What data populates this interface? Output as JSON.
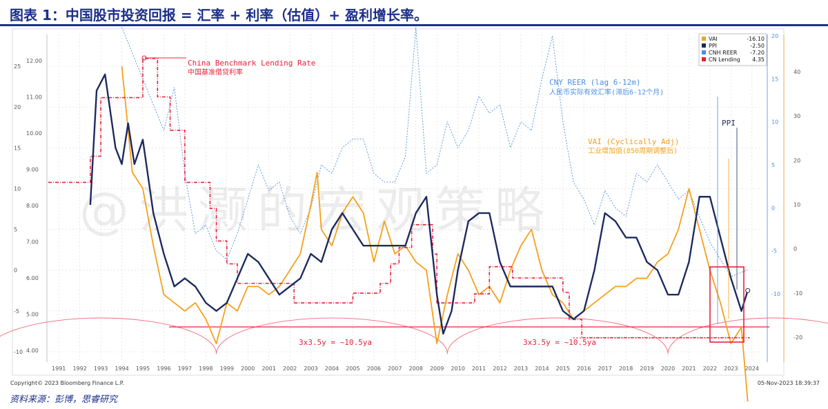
{
  "title": "图表 1：中国股市投资回报 = 汇率 + 利率（估值）+ 盈利增长率。",
  "source": "资料来源：彭博，思睿研究",
  "copyright": "Copyright© 2023 Bloomberg Finance L.P.",
  "timestamp": "05-Nov-2023 18:39:37",
  "watermark": "@洪灏的宏观策略",
  "colors": {
    "vai": "#f5a01a",
    "ppi": "#1c2a5e",
    "reer": "#4a90e2",
    "lending": "#e8203a",
    "title": "#1b2f8a"
  },
  "annotations": {
    "lending_en": "China Benchmark Lending Rate",
    "lending_cn": "中国基准借贷利率",
    "reer_en": "CNY REER (lag 6-12m)",
    "reer_cn": "人民币实际有效汇率(滞后6-12个月)",
    "vai_en": "VAI (Cyclically Adj)",
    "vai_cn": "工业增加值(850周期调整后)",
    "ppi": "PPI",
    "cycle_1": "3x3.5y = ~10.5ya",
    "cycle_2": "3x3.5y = ~10.5ya"
  },
  "legend": [
    {
      "name": "VAI",
      "value": "-16.10",
      "color": "#f5a01a"
    },
    {
      "name": "PPI",
      "value": "-2.50",
      "color": "#1c2a5e"
    },
    {
      "name": "CNH REER",
      "value": "-7.20",
      "color": "#4a90e2"
    },
    {
      "name": "CN Lending",
      "value": "4.35",
      "color": "#e8203a"
    }
  ],
  "chart_data": {
    "type": "line",
    "x_ticks": [
      "1991",
      "1992",
      "1993",
      "1994",
      "1995",
      "1996",
      "1997",
      "1998",
      "1999",
      "2000",
      "2001",
      "2002",
      "2003",
      "2004",
      "2005",
      "2006",
      "2007",
      "2008",
      "2009",
      "2010",
      "2011",
      "2012",
      "2013",
      "2014",
      "2015",
      "2016",
      "2017",
      "2018",
      "2019",
      "2020",
      "2021",
      "2022",
      "2023",
      "2024"
    ],
    "left_inner_ticks": [
      "12.00",
      "11.00",
      "10.00",
      "9.00",
      "8.00",
      "7.00",
      "6.00",
      "5.00",
      "4.00"
    ],
    "left_outer_ticks": [
      "25",
      "20",
      "15",
      "10",
      "5",
      "0",
      "-5",
      "-10"
    ],
    "right_inner_ticks": [
      "20",
      "15",
      "10",
      "5",
      "0",
      "-5",
      "-10"
    ],
    "right_outer_ticks": [
      "40",
      "30",
      "20",
      "10",
      "0",
      "-10",
      "-20"
    ],
    "series": [
      {
        "name": "CN Lending",
        "color": "#e8203a",
        "points": [
          [
            1990.5,
            8.64
          ],
          [
            1992.5,
            9.36
          ],
          [
            1993.0,
            10.98
          ],
          [
            1994.5,
            10.98
          ],
          [
            1995.0,
            12.06
          ],
          [
            1995.7,
            11.0
          ],
          [
            1996.3,
            10.08
          ],
          [
            1996.7,
            10.08
          ],
          [
            1997.0,
            8.64
          ],
          [
            1997.8,
            8.64
          ],
          [
            1998.2,
            7.92
          ],
          [
            1998.5,
            7.02
          ],
          [
            1999.0,
            6.39
          ],
          [
            1999.5,
            5.85
          ],
          [
            2001.8,
            5.85
          ],
          [
            2002.2,
            5.31
          ],
          [
            2004.8,
            5.31
          ],
          [
            2005.0,
            5.58
          ],
          [
            2006.3,
            5.85
          ],
          [
            2006.8,
            6.39
          ],
          [
            2007.2,
            6.84
          ],
          [
            2007.8,
            7.47
          ],
          [
            2008.3,
            7.47
          ],
          [
            2008.8,
            6.66
          ],
          [
            2009.0,
            5.31
          ],
          [
            2010.8,
            5.56
          ],
          [
            2011.5,
            6.31
          ],
          [
            2012.3,
            6.31
          ],
          [
            2012.6,
            6.0
          ],
          [
            2014.8,
            6.0
          ],
          [
            2015.0,
            5.6
          ],
          [
            2015.3,
            4.85
          ],
          [
            2015.9,
            4.35
          ],
          [
            2023.9,
            4.35
          ]
        ]
      },
      {
        "name": "PPI",
        "color": "#1c2a5e",
        "points": [
          [
            1992.5,
            8.0
          ],
          [
            1992.8,
            22.0
          ],
          [
            1993.2,
            24.0
          ],
          [
            1993.7,
            15.0
          ],
          [
            1994.0,
            13.0
          ],
          [
            1994.3,
            18.0
          ],
          [
            1994.6,
            13.0
          ],
          [
            1995.0,
            16.0
          ],
          [
            1995.5,
            7.0
          ],
          [
            1996.0,
            2.0
          ],
          [
            1996.5,
            -2.0
          ],
          [
            1997.0,
            -1.0
          ],
          [
            1997.5,
            -2.0
          ],
          [
            1998.0,
            -4.0
          ],
          [
            1998.5,
            -5.0
          ],
          [
            1999.0,
            -4.0
          ],
          [
            1999.5,
            -1.0
          ],
          [
            2000.0,
            2.0
          ],
          [
            2000.5,
            1.0
          ],
          [
            2001.0,
            -1.0
          ],
          [
            2001.5,
            -3.0
          ],
          [
            2002.0,
            -2.0
          ],
          [
            2002.5,
            -1.0
          ],
          [
            2003.0,
            2.0
          ],
          [
            2003.5,
            1.0
          ],
          [
            2004.0,
            5.0
          ],
          [
            2004.5,
            7.0
          ],
          [
            2005.0,
            5.0
          ],
          [
            2005.5,
            3.0
          ],
          [
            2006.0,
            3.0
          ],
          [
            2006.5,
            3.0
          ],
          [
            2007.0,
            3.0
          ],
          [
            2007.5,
            3.0
          ],
          [
            2008.0,
            7.0
          ],
          [
            2008.5,
            9.0
          ],
          [
            2009.0,
            -3.0
          ],
          [
            2009.3,
            -7.8
          ],
          [
            2009.7,
            -5.0
          ],
          [
            2010.0,
            0.0
          ],
          [
            2010.5,
            6.0
          ],
          [
            2011.0,
            7.0
          ],
          [
            2011.5,
            7.0
          ],
          [
            2012.0,
            1.0
          ],
          [
            2012.5,
            -2.0
          ],
          [
            2013.0,
            -2.0
          ],
          [
            2013.5,
            -2.0
          ],
          [
            2014.0,
            -2.0
          ],
          [
            2014.5,
            -2.0
          ],
          [
            2015.0,
            -5.0
          ],
          [
            2015.5,
            -6.0
          ],
          [
            2016.0,
            -5.0
          ],
          [
            2016.5,
            0.0
          ],
          [
            2017.0,
            7.0
          ],
          [
            2017.5,
            6.0
          ],
          [
            2018.0,
            4.0
          ],
          [
            2018.5,
            4.0
          ],
          [
            2019.0,
            1.0
          ],
          [
            2019.5,
            0.0
          ],
          [
            2020.0,
            -3.0
          ],
          [
            2020.5,
            -3.0
          ],
          [
            2021.0,
            1.0
          ],
          [
            2021.5,
            9.0
          ],
          [
            2022.0,
            9.0
          ],
          [
            2022.5,
            4.0
          ],
          [
            2023.0,
            -1.0
          ],
          [
            2023.5,
            -5.0
          ],
          [
            2023.8,
            -2.5
          ]
        ]
      },
      {
        "name": "VAI",
        "color": "#f5a01a",
        "points": [
          [
            1994.0,
            25.0
          ],
          [
            1994.5,
            12.0
          ],
          [
            1995.0,
            10.0
          ],
          [
            1995.5,
            3.0
          ],
          [
            1996.0,
            -3.0
          ],
          [
            1997.0,
            -5.0
          ],
          [
            1997.5,
            -4.0
          ],
          [
            1998.0,
            -6.0
          ],
          [
            1998.5,
            -9.0
          ],
          [
            1999.0,
            -4.0
          ],
          [
            1999.5,
            -5.0
          ],
          [
            2000.0,
            -2.0
          ],
          [
            2000.5,
            -2.0
          ],
          [
            2001.0,
            -3.0
          ],
          [
            2001.5,
            -2.0
          ],
          [
            2002.0,
            0.0
          ],
          [
            2002.5,
            2.0
          ],
          [
            2003.0,
            8.0
          ],
          [
            2003.3,
            12.0
          ],
          [
            2003.5,
            5.0
          ],
          [
            2004.0,
            3.0
          ],
          [
            2004.5,
            7.0
          ],
          [
            2005.0,
            9.0
          ],
          [
            2005.5,
            7.0
          ],
          [
            2006.0,
            1.0
          ],
          [
            2006.5,
            6.0
          ],
          [
            2007.0,
            2.0
          ],
          [
            2007.5,
            3.0
          ],
          [
            2008.0,
            1.0
          ],
          [
            2008.5,
            0.0
          ],
          [
            2009.0,
            -9.0
          ],
          [
            2009.5,
            -3.0
          ],
          [
            2010.0,
            2.0
          ],
          [
            2010.5,
            0.0
          ],
          [
            2011.0,
            -3.0
          ],
          [
            2011.5,
            -2.0
          ],
          [
            2012.0,
            -4.0
          ],
          [
            2012.5,
            0.0
          ],
          [
            2013.0,
            3.0
          ],
          [
            2013.5,
            5.0
          ],
          [
            2014.0,
            0.0
          ],
          [
            2014.5,
            -3.0
          ],
          [
            2015.0,
            -4.0
          ],
          [
            2015.5,
            -6.0
          ],
          [
            2016.0,
            -5.0
          ],
          [
            2016.5,
            -4.0
          ],
          [
            2017.0,
            -3.0
          ],
          [
            2017.5,
            -2.0
          ],
          [
            2018.0,
            -2.0
          ],
          [
            2018.5,
            -1.0
          ],
          [
            2019.0,
            -1.0
          ],
          [
            2019.5,
            1.0
          ],
          [
            2020.0,
            2.0
          ],
          [
            2020.5,
            5.0
          ],
          [
            2021.0,
            10.0
          ],
          [
            2021.5,
            5.0
          ],
          [
            2022.0,
            0.0
          ],
          [
            2022.5,
            -4.0
          ],
          [
            2023.0,
            -9.0
          ],
          [
            2023.5,
            -7.0
          ],
          [
            2023.8,
            -16.1
          ]
        ]
      },
      {
        "name": "CNH REER",
        "color": "#4a90e2",
        "points": [
          [
            1994.0,
            21.0
          ],
          [
            1994.5,
            18.0
          ],
          [
            1995.0,
            15.0
          ],
          [
            1995.5,
            12.0
          ],
          [
            1996.0,
            9.0
          ],
          [
            1996.5,
            14.0
          ],
          [
            1997.0,
            4.0
          ],
          [
            1997.5,
            -3.0
          ],
          [
            1998.0,
            -2.0
          ],
          [
            1998.5,
            -5.0
          ],
          [
            1999.0,
            -6.0
          ],
          [
            1999.5,
            -3.0
          ],
          [
            2000.0,
            1.0
          ],
          [
            2000.5,
            5.0
          ],
          [
            2001.0,
            2.0
          ],
          [
            2001.5,
            3.0
          ],
          [
            2002.0,
            -1.0
          ],
          [
            2002.5,
            -3.0
          ],
          [
            2003.0,
            0.0
          ],
          [
            2003.5,
            5.0
          ],
          [
            2004.0,
            4.0
          ],
          [
            2004.5,
            7.0
          ],
          [
            2005.0,
            8.0
          ],
          [
            2005.5,
            8.0
          ],
          [
            2006.0,
            4.0
          ],
          [
            2006.5,
            3.0
          ],
          [
            2007.0,
            3.0
          ],
          [
            2007.5,
            6.0
          ],
          [
            2008.0,
            21.0
          ],
          [
            2008.5,
            4.0
          ],
          [
            2009.0,
            5.0
          ],
          [
            2009.5,
            10.0
          ],
          [
            2010.0,
            7.0
          ],
          [
            2010.5,
            9.0
          ],
          [
            2011.0,
            13.0
          ],
          [
            2011.5,
            11.0
          ],
          [
            2012.0,
            12.0
          ],
          [
            2012.5,
            7.0
          ],
          [
            2013.0,
            10.0
          ],
          [
            2013.5,
            9.0
          ],
          [
            2014.0,
            15.0
          ],
          [
            2014.5,
            20.0
          ],
          [
            2015.0,
            10.0
          ],
          [
            2015.5,
            3.0
          ],
          [
            2016.0,
            1.0
          ],
          [
            2016.5,
            -2.0
          ],
          [
            2017.0,
            2.0
          ],
          [
            2017.5,
            0.0
          ],
          [
            2018.0,
            -1.0
          ],
          [
            2018.5,
            4.0
          ],
          [
            2019.0,
            3.0
          ],
          [
            2019.5,
            5.0
          ],
          [
            2020.0,
            3.0
          ],
          [
            2020.5,
            1.0
          ],
          [
            2021.0,
            2.0
          ],
          [
            2021.5,
            -1.0
          ],
          [
            2022.0,
            -4.0
          ],
          [
            2022.5,
            -6.0
          ],
          [
            2023.0,
            -8.0
          ],
          [
            2023.8,
            -7.2
          ]
        ]
      }
    ]
  }
}
